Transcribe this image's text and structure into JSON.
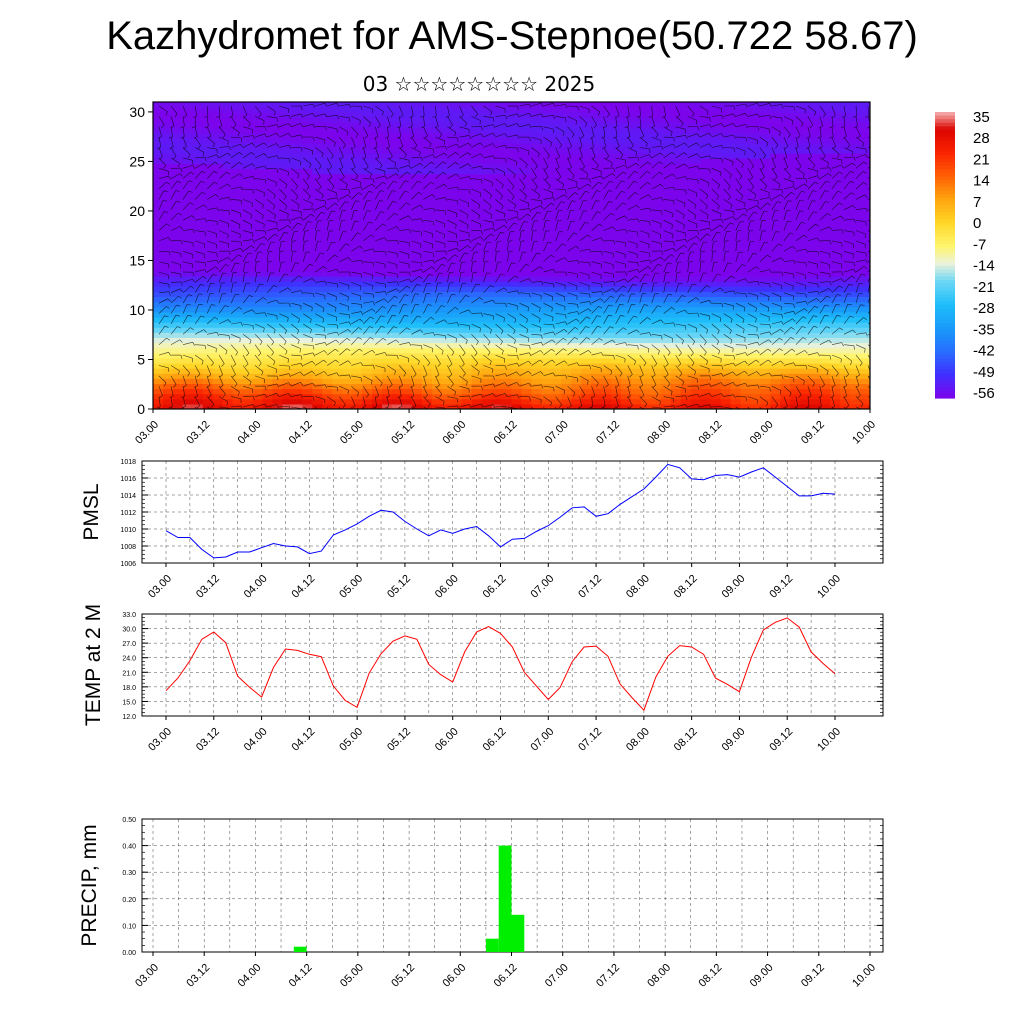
{
  "title": "Kazhydromet for AMS-Stepnoe(50.722 58.67)",
  "subtitle": "03 ☆☆☆☆☆☆☆☆ 2025",
  "colors": {
    "pmsl_line": "#0000ff",
    "temp_line": "#ff0000",
    "precip_bar": "#00ee00",
    "grid": "#000000"
  },
  "chart_data": [
    {
      "type": "heatmap",
      "title": "",
      "x_ticks": [
        "03.00",
        "03.12",
        "04.00",
        "04.12",
        "05.00",
        "05.12",
        "06.00",
        "06.12",
        "07.00",
        "07.12",
        "08.00",
        "08.12",
        "09.00",
        "09.12",
        "10.00"
      ],
      "y_ticks": [
        "0",
        "5",
        "10",
        "15",
        "20",
        "25",
        "30"
      ],
      "ylim": [
        0,
        30
      ],
      "colorbar_labels": [
        "35",
        "28",
        "21",
        "14",
        "7",
        "0",
        "-7",
        "-14",
        "-21",
        "-28",
        "-35",
        "-42",
        "-49",
        "-56"
      ],
      "colormap": "temperature",
      "overlay": "wind barbs"
    },
    {
      "type": "line",
      "ylabel": "PMSL",
      "x_ticks": [
        "03.00",
        "03.12",
        "04.00",
        "04.12",
        "05.00",
        "05.12",
        "06.00",
        "06.12",
        "07.00",
        "07.12",
        "08.00",
        "08.12",
        "09.00",
        "09.12",
        "10.00"
      ],
      "y_ticks": [
        "1006",
        "1008",
        "1010",
        "1012",
        "1014",
        "1016",
        "1018"
      ],
      "ylim": [
        1006,
        1018
      ],
      "x_hours": [
        0,
        3,
        6,
        9,
        12,
        15,
        18,
        21,
        24,
        27,
        30,
        33,
        36,
        39,
        42,
        45,
        48,
        51,
        54,
        57,
        60,
        63,
        66,
        69,
        72,
        75,
        78,
        81,
        84,
        87,
        90,
        93,
        96,
        99,
        102,
        105,
        108,
        111,
        114,
        117,
        120,
        123,
        126,
        129,
        132,
        135,
        138,
        141,
        144,
        147,
        150,
        153,
        156,
        159,
        162,
        165,
        168
      ],
      "values": [
        1009.8,
        1009.0,
        1009.0,
        1007.6,
        1006.6,
        1006.7,
        1007.3,
        1007.3,
        1007.8,
        1008.3,
        1008.0,
        1007.9,
        1007.1,
        1007.4,
        1009.3,
        1009.9,
        1010.6,
        1011.5,
        1012.2,
        1012.0,
        1010.9,
        1010.0,
        1009.2,
        1009.9,
        1009.5,
        1010.0,
        1010.3,
        1009.2,
        1007.9,
        1008.8,
        1008.9,
        1009.7,
        1010.4,
        1011.4,
        1012.5,
        1012.6,
        1011.5,
        1011.8,
        1012.9,
        1013.8,
        1014.7,
        1016.1,
        1017.6,
        1017.2,
        1015.9,
        1015.8,
        1016.3,
        1016.4,
        1016.1,
        1016.7,
        1017.2,
        1016.1,
        1015.0,
        1013.9,
        1013.9,
        1014.2,
        1014.1
      ]
    },
    {
      "type": "line",
      "ylabel": "TEMP at 2 M",
      "x_ticks": [
        "03.00",
        "03.12",
        "04.00",
        "04.12",
        "05.00",
        "05.12",
        "06.00",
        "06.12",
        "07.00",
        "07.12",
        "08.00",
        "08.12",
        "09.00",
        "09.12",
        "10.00"
      ],
      "y_ticks": [
        "12.0",
        "15.0",
        "18.0",
        "21.0",
        "24.0",
        "27.0",
        "30.0",
        "33.0"
      ],
      "ylim": [
        12,
        33
      ],
      "x_hours": [
        0,
        3,
        6,
        9,
        12,
        15,
        18,
        21,
        24,
        27,
        30,
        33,
        36,
        39,
        42,
        45,
        48,
        51,
        54,
        57,
        60,
        63,
        66,
        69,
        72,
        75,
        78,
        81,
        84,
        87,
        90,
        93,
        96,
        99,
        102,
        105,
        108,
        111,
        114,
        117,
        120,
        123,
        126,
        129,
        132,
        135,
        138,
        141,
        144,
        147,
        150,
        153,
        156,
        159,
        162,
        165,
        168
      ],
      "values": [
        17.2,
        19.8,
        23.4,
        27.8,
        29.3,
        27.1,
        20.2,
        17.9,
        15.9,
        22.0,
        25.8,
        25.5,
        24.7,
        24.2,
        18.2,
        15.2,
        13.8,
        20.8,
        24.8,
        27.4,
        28.5,
        27.8,
        22.6,
        20.5,
        19.0,
        25.2,
        29.3,
        30.4,
        29.0,
        26.2,
        21.0,
        18.2,
        15.4,
        17.9,
        23.2,
        26.2,
        26.4,
        24.3,
        18.6,
        15.8,
        13.2,
        20.0,
        24.3,
        26.5,
        26.2,
        24.7,
        19.8,
        18.5,
        17.0,
        24.1,
        29.7,
        31.3,
        32.2,
        30.3,
        25.2,
        22.8,
        20.7
      ]
    },
    {
      "type": "bar",
      "ylabel": "PRECIP, mm",
      "x_ticks": [
        "03.00",
        "03.12",
        "04.00",
        "04.12",
        "05.00",
        "05.12",
        "06.00",
        "06.12",
        "07.00",
        "07.12",
        "08.00",
        "08.12",
        "09.00",
        "09.12",
        "10.00"
      ],
      "y_ticks": [
        "0.00",
        "0.10",
        "0.20",
        "0.30",
        "0.40",
        "0.50"
      ],
      "ylim": [
        0,
        0.5
      ],
      "bars": [
        {
          "start_hour": 33,
          "end_hour": 36,
          "value": 0.02
        },
        {
          "start_hour": 78,
          "end_hour": 81,
          "value": 0.05
        },
        {
          "start_hour": 81,
          "end_hour": 84,
          "value": 0.4
        },
        {
          "start_hour": 84,
          "end_hour": 87,
          "value": 0.14
        }
      ]
    }
  ]
}
